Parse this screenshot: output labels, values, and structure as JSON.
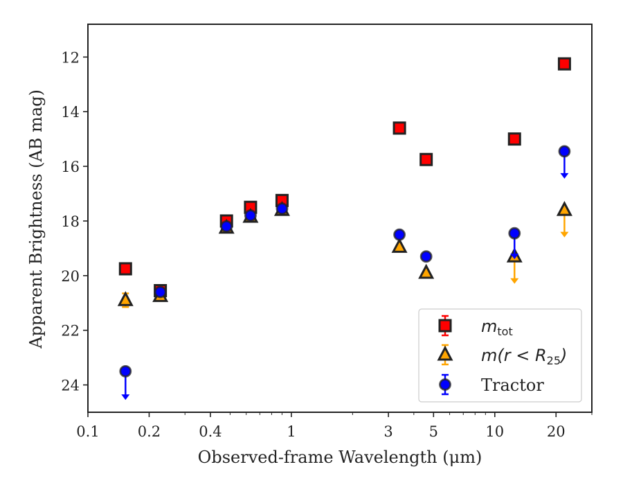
{
  "chart_data": {
    "type": "scatter",
    "title": "",
    "xlabel": "Observed-frame Wavelength (μm)",
    "ylabel": "Apparent Brightness (AB mag)",
    "xscale": "log",
    "xlim": [
      0.1,
      30
    ],
    "ylim": [
      25.0,
      10.8
    ],
    "y_inverted": true,
    "x_ticks": [
      {
        "value": 0.1,
        "label": "0.1"
      },
      {
        "value": 0.2,
        "label": "0.2"
      },
      {
        "value": 0.4,
        "label": "0.4"
      },
      {
        "value": 1,
        "label": "1"
      },
      {
        "value": 3,
        "label": "3"
      },
      {
        "value": 5,
        "label": "5"
      },
      {
        "value": 10,
        "label": "10"
      },
      {
        "value": 20,
        "label": "20"
      }
    ],
    "y_ticks": [
      {
        "value": 12,
        "label": "12"
      },
      {
        "value": 14,
        "label": "14"
      },
      {
        "value": 16,
        "label": "16"
      },
      {
        "value": 18,
        "label": "18"
      },
      {
        "value": 20,
        "label": "20"
      },
      {
        "value": 22,
        "label": "22"
      },
      {
        "value": 24,
        "label": "24"
      }
    ],
    "grid": false,
    "legend_position": "bottom-right",
    "series": [
      {
        "key": "mtot",
        "name": "m_tot",
        "marker": "square",
        "color": "#ff0000",
        "edge_color": "#222222",
        "points": [
          {
            "x": 0.153,
            "y": 19.75
          },
          {
            "x": 0.227,
            "y": 20.55
          },
          {
            "x": 0.48,
            "y": 18.0
          },
          {
            "x": 0.63,
            "y": 17.5
          },
          {
            "x": 0.9,
            "y": 17.25
          },
          {
            "x": 3.4,
            "y": 14.6
          },
          {
            "x": 4.6,
            "y": 15.75
          },
          {
            "x": 12.5,
            "y": 15.0
          },
          {
            "x": 22.0,
            "y": 12.25
          }
        ]
      },
      {
        "key": "mr25",
        "name": "m(r < R_25)",
        "marker": "triangle",
        "color": "#ffa500",
        "edge_color": "#222222",
        "points": [
          {
            "x": 0.153,
            "y": 20.9,
            "err": 0.25
          },
          {
            "x": 0.227,
            "y": 20.75
          },
          {
            "x": 0.48,
            "y": 18.25
          },
          {
            "x": 0.63,
            "y": 17.85
          },
          {
            "x": 0.9,
            "y": 17.6
          },
          {
            "x": 3.4,
            "y": 18.95
          },
          {
            "x": 4.6,
            "y": 19.9
          },
          {
            "x": 12.5,
            "y": 19.3,
            "upper_limit": true,
            "arrow_to": 20.3
          },
          {
            "x": 22.0,
            "y": 17.6,
            "upper_limit": true,
            "arrow_to": 18.6
          }
        ]
      },
      {
        "key": "tractor",
        "name": "Tractor",
        "marker": "circle",
        "color": "#0000ff",
        "edge_color": "#222222",
        "points": [
          {
            "x": 0.153,
            "y": 23.5,
            "upper_limit": true,
            "arrow_to": 24.55
          },
          {
            "x": 0.227,
            "y": 20.6
          },
          {
            "x": 0.48,
            "y": 18.2
          },
          {
            "x": 0.63,
            "y": 17.8
          },
          {
            "x": 0.9,
            "y": 17.55
          },
          {
            "x": 3.4,
            "y": 18.5
          },
          {
            "x": 4.6,
            "y": 19.3
          },
          {
            "x": 12.5,
            "y": 18.45,
            "upper_limit": true,
            "arrow_to": 19.4
          },
          {
            "x": 22.0,
            "y": 15.45,
            "upper_limit": true,
            "arrow_to": 16.45
          }
        ]
      }
    ]
  },
  "legend": {
    "items": [
      {
        "key": "mtot",
        "base": "m",
        "sub": "tot"
      },
      {
        "key": "mr25",
        "base": "m(r < R",
        "sub": "25",
        "tail": ")"
      },
      {
        "key": "tractor",
        "text": "Tractor"
      }
    ]
  }
}
